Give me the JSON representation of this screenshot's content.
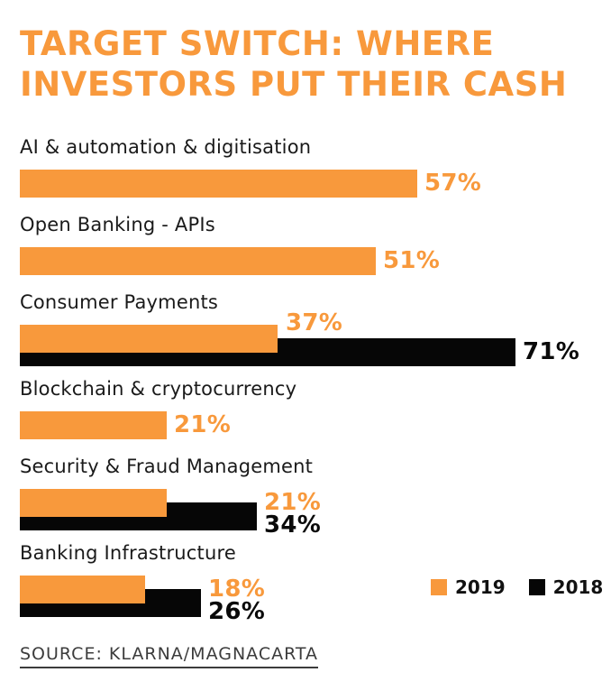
{
  "title": {
    "line1": "TARGET SWITCH: WHERE",
    "line2": "INVESTORS PUT THEIR CASH"
  },
  "colors": {
    "orange": "#F8993C",
    "black": "#060606",
    "label_text": "#1A1A1A",
    "source_text": "#3C3C3C",
    "background": "#FFFFFF"
  },
  "legend": {
    "items": [
      {
        "label": "2019",
        "color": "#F8993C"
      },
      {
        "label": "2018",
        "color": "#060606"
      }
    ]
  },
  "source": {
    "text": "SOURCE: KLARNA/MAGNACARTA"
  },
  "chart_data": {
    "type": "bar",
    "orientation": "horizontal",
    "title": "TARGET SWITCH: WHERE INVESTORS PUT THEIR CASH",
    "unit": "%",
    "categories": [
      "AI & automation & digitisation",
      "Open Banking - APIs",
      "Consumer Payments",
      "Blockchain & cryptocurrency",
      "Security & Fraud Management",
      "Banking Infrastructure"
    ],
    "series": [
      {
        "name": "2019",
        "color": "#F8993C",
        "values": [
          57,
          51,
          37,
          21,
          21,
          18
        ]
      },
      {
        "name": "2018",
        "color": "#060606",
        "values": [
          null,
          null,
          71,
          null,
          34,
          26
        ]
      }
    ],
    "value_label_format": "{value}%",
    "xlim": [
      0,
      78
    ],
    "grid": false,
    "legend_position": "bottom-right"
  }
}
